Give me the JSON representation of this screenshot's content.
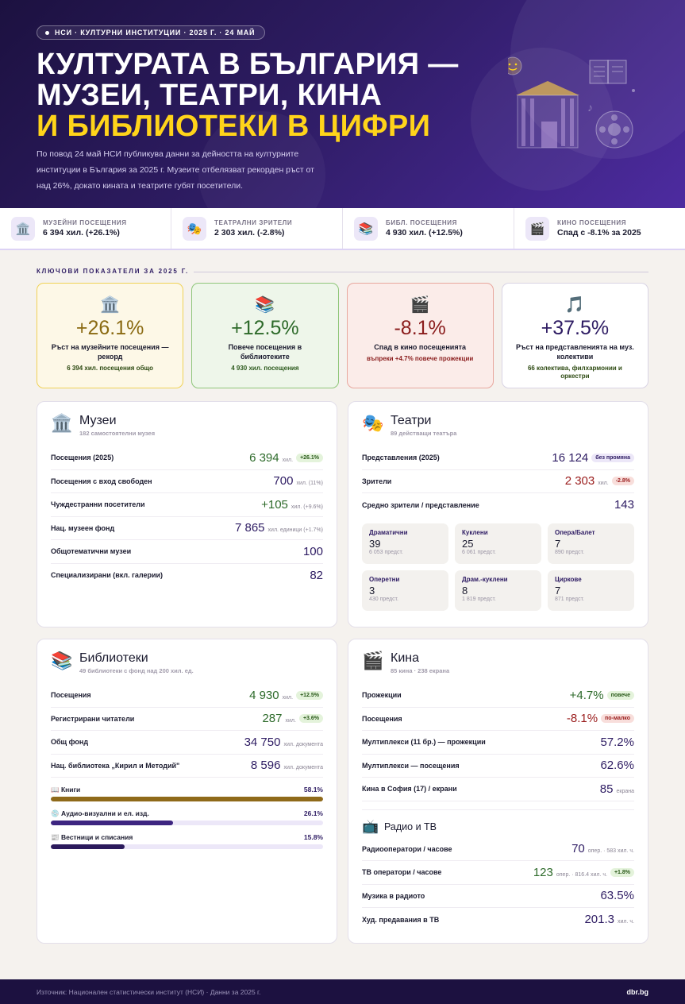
{
  "hero": {
    "pill": "НСИ · КУЛТУРНИ ИНСТИТУЦИИ · 2025 Г. · 24 МАЙ",
    "title_line1": "КУЛТУРАТА В БЪЛГАРИЯ —",
    "title_line2": "МУЗЕИ, ТЕАТРИ, КИНА",
    "title_line3": "И БИБЛИОТЕКИ В ЦИФРИ",
    "lede": "По повод 24 май НСИ публикува данни за дейността на културните институции в България за 2025 г. Музеите отбелязват рекорден ръст от над 26%, докато кината и театрите губят посетители."
  },
  "stats": [
    {
      "icon": "museum-icon",
      "glyph": "🏛️",
      "label": "МУЗЕЙНИ ПОСЕЩЕНИЯ",
      "value": "6 394 хил. (+26.1%)"
    },
    {
      "icon": "theater-masks-icon",
      "glyph": "🎭",
      "label": "ТЕАТРАЛНИ ЗРИТЕЛИ",
      "value": "2 303 хил. (-2.8%)"
    },
    {
      "icon": "books-icon",
      "glyph": "📚",
      "label": "БИБЛ. ПОСЕЩЕНИЯ",
      "value": "4 930 хил. (+12.5%)"
    },
    {
      "icon": "clapperboard-icon",
      "glyph": "🎬",
      "label": "КИНО ПОСЕЩЕНИЯ",
      "value": "Спад с -8.1% за 2025"
    }
  ],
  "key_title": "КЛЮЧОВИ ПОКАЗАТЕЛИ ЗА 2025 Г.",
  "kpis": [
    {
      "glyph": "🏛️",
      "big": "+26.1%",
      "label": "Ръст на музейните посещения — рекорд",
      "sub": "6 394 хил. посещения общо"
    },
    {
      "glyph": "📚",
      "big": "+12.5%",
      "label": "Повече посещения в библиотеките",
      "sub": "4 930 хил. посещения"
    },
    {
      "glyph": "🎬",
      "big": "-8.1%",
      "label": "Спад в кино посещенията",
      "sub": "въпреки +4.7% повече прожекции"
    },
    {
      "glyph": "🎵",
      "big": "+37.5%",
      "label": "Ръст на представленията на муз. колективи",
      "sub": "66 колектива, филхармонии и оркестри"
    }
  ],
  "museums": {
    "glyph": "🏛️",
    "title": "Музеи",
    "subtitle": "182 самостоятелни музея",
    "rows": [
      {
        "label": "Посещения (2025)",
        "value": "6 394",
        "unit": "хил.",
        "badge": "+26.1%"
      },
      {
        "label": "Посещения с вход свободен",
        "value": "700",
        "unit": "хил. (11%)"
      },
      {
        "label": "Чуждестранни посетители",
        "value": "+105",
        "unit": "хил. (+9.6%)"
      },
      {
        "label": "Нац. музеен фонд",
        "value": "7 865",
        "unit": "хил. единици (+1.7%)"
      },
      {
        "label": "Общотематични музеи",
        "value": "100"
      },
      {
        "label": "Специализирани (вкл. галерии)",
        "value": "82"
      }
    ]
  },
  "theaters": {
    "glyph": "🎭",
    "title": "Театри",
    "subtitle": "89 действащи театъра",
    "rows": [
      {
        "label": "Представления (2025)",
        "value": "16 124",
        "badge": "без промяна"
      },
      {
        "label": "Зрители",
        "value": "2 303",
        "unit": "хил.",
        "badge": "-2.8%"
      },
      {
        "label": "Средно зрители / представление",
        "value": "143"
      }
    ],
    "tiles": [
      {
        "name": "Драматични",
        "value": "39",
        "sub": "6 053 предст."
      },
      {
        "name": "Куклени",
        "value": "25",
        "sub": "6 061 предст."
      },
      {
        "name": "Опера/Балет",
        "value": "7",
        "sub": "890 предст."
      },
      {
        "name": "Оперетни",
        "value": "3",
        "sub": "430 предст."
      },
      {
        "name": "Драм.-куклени",
        "value": "8",
        "sub": "1 819 предст."
      },
      {
        "name": "Циркове",
        "value": "7",
        "sub": "871 предст."
      }
    ]
  },
  "libraries": {
    "glyph": "📚",
    "title": "Библиотеки",
    "subtitle": "49 библиотеки с фонд над 200 хил. ед.",
    "rows": [
      {
        "label": "Посещения",
        "value": "4 930",
        "unit": "хил.",
        "badge": "+12.5%"
      },
      {
        "label": "Регистрирани читатели",
        "value": "287",
        "unit": "хил.",
        "badge": "+3.6%"
      },
      {
        "label": "Общ фонд",
        "value": "34 750",
        "unit": "хил. документа"
      },
      {
        "label": "Нац. библиотека „Кирил и Методий\"",
        "value": "8 596",
        "unit": "хил. документа"
      }
    ],
    "bars": [
      {
        "label": "📖 Книги",
        "pct_text": "58.1%",
        "share": 1.0,
        "color": "#8f6a1a"
      },
      {
        "label": "💿 Аудио-визуални и ел. изд.",
        "pct_text": "26.1%",
        "share": 0.45,
        "color": "#3d2580"
      },
      {
        "label": "📰 Вестници и списания",
        "pct_text": "15.8%",
        "share": 0.27,
        "color": "#2b1a5c"
      }
    ]
  },
  "cinemas": {
    "glyph": "🎬",
    "title": "Кина",
    "subtitle": "85 кина · 238 екрана",
    "rows": [
      {
        "label": "Прожекции",
        "value": "+4.7%",
        "badge": "повече"
      },
      {
        "label": "Посещения",
        "value": "-8.1%",
        "badge": "по-малко"
      },
      {
        "label": "Мултиплекси (11 бр.) — прожекции",
        "value": "57.2%"
      },
      {
        "label": "Мултиплекси — посещения",
        "value": "62.6%"
      },
      {
        "label": "Кина в София (17) / екрани",
        "value": "85",
        "unit": "екрана"
      }
    ]
  },
  "radio_tv": {
    "glyph": "📺",
    "title": "Радио и ТВ",
    "rows": [
      {
        "label": "Радиооператори / часове",
        "value": "70",
        "unit": "опер. · 583 хил. ч."
      },
      {
        "label": "ТВ оператори / часове",
        "value": "123",
        "unit": "опер. · 816.4 хил. ч.",
        "badge": "+1.8%"
      },
      {
        "label": "Музика в радиото",
        "value": "63.5%"
      },
      {
        "label": "Худ. предавания в ТВ",
        "value": "201.3",
        "unit": "хил. ч."
      }
    ]
  },
  "footer": {
    "source": "Източник: Национален статистически институт (НСИ) · Данни за 2025 г.",
    "brand": "dbr.bg"
  }
}
